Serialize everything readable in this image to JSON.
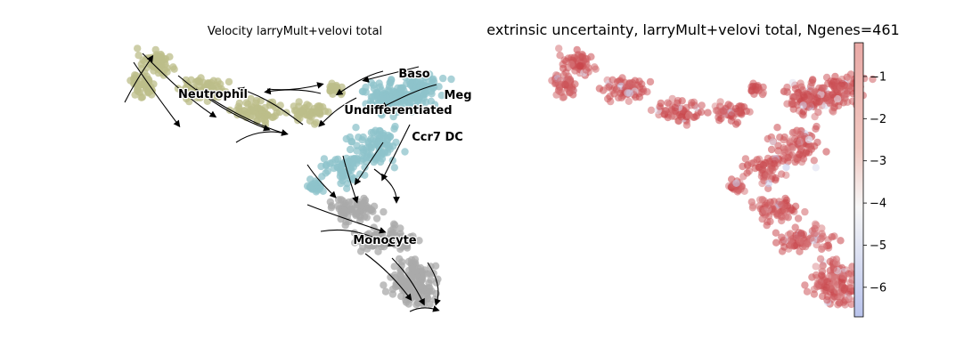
{
  "panels": {
    "left_title": "Velocity larryMult+velovi total",
    "right_title": "extrinsic uncertainty, larryMult+velovi total, Ngenes=461"
  },
  "colors": {
    "neutrophil": "#bcbd8a",
    "progenitor": "#8ec3cb",
    "monocyte": "#a9a9a9",
    "arrow": "#000000",
    "colormap": [
      "#b9c3ec",
      "#ffffff",
      "#efb3b3",
      "#c1272d"
    ]
  },
  "chart_data": [
    {
      "type": "scatter",
      "title": "Velocity larryMult+velovi total",
      "description": "UMAP embedding with velocity streamlines colored by cell type",
      "grid": false,
      "axes_visible": false,
      "cluster_labels": [
        "Baso",
        "Meg",
        "Neutrophil",
        "Undifferentiated",
        "Ccr7 DC",
        "Monocyte"
      ],
      "clusters": [
        {
          "name": "Neutrophil",
          "color": "#bcbd8a"
        },
        {
          "name": "Undifferentiated",
          "color": "#8ec3cb"
        },
        {
          "name": "Baso",
          "color": "#8ec3cb"
        },
        {
          "name": "Meg",
          "color": "#8ec3cb"
        },
        {
          "name": "Ccr7 DC",
          "color": "#8ec3cb"
        },
        {
          "name": "Monocyte",
          "color": "#a9a9a9"
        }
      ]
    },
    {
      "type": "scatter",
      "title": "extrinsic uncertainty, larryMult+velovi total, Ngenes=461",
      "grid": false,
      "axes_visible": false,
      "colorbar": {
        "ticks": [
          -1,
          -2,
          -3,
          -4,
          -5,
          -6
        ],
        "tick_labels": [
          "−1",
          "−2",
          "−3",
          "−4",
          "−5",
          "−6"
        ],
        "range": [
          -6.7,
          -0.2
        ],
        "colormap": "coolwarm"
      }
    }
  ]
}
